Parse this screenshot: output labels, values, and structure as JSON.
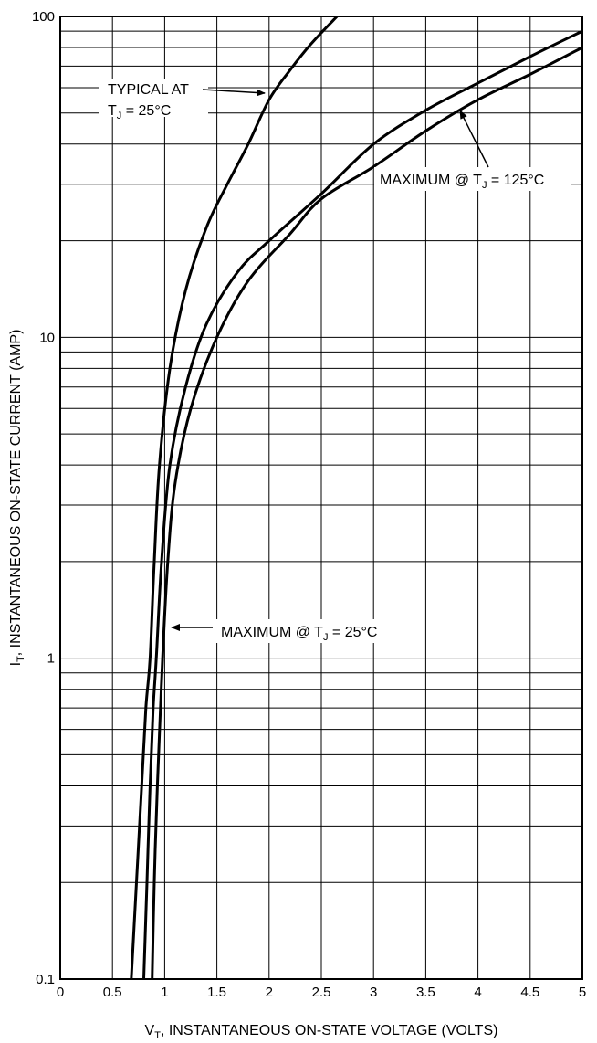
{
  "chart_data": {
    "type": "line",
    "x_scale": "linear",
    "y_scale": "log",
    "xlim": [
      0,
      5
    ],
    "ylim": [
      0.1,
      100
    ],
    "grid": true,
    "x_ticks": [
      "0",
      "0.5",
      "1",
      "1.5",
      "2",
      "2.5",
      "3",
      "3.5",
      "4",
      "4.5",
      "5"
    ],
    "y_ticks": [
      "0.1",
      "1",
      "10",
      "100"
    ],
    "xlabel": {
      "main": "V",
      "sub": "T",
      "rest": ", INSTANTANEOUS ON-STATE VOLTAGE (VOLTS)"
    },
    "ylabel": {
      "main": "I",
      "sub": "T",
      "rest": ", INSTANTANEOUS ON-STATE CURRENT (AMP)"
    },
    "series": [
      {
        "id": "typical-25c",
        "points": [
          [
            0.68,
            0.1
          ],
          [
            0.73,
            0.2
          ],
          [
            0.78,
            0.4
          ],
          [
            0.82,
            0.7
          ],
          [
            0.86,
            1
          ],
          [
            0.9,
            2
          ],
          [
            0.95,
            4
          ],
          [
            1.05,
            8
          ],
          [
            1.2,
            14
          ],
          [
            1.4,
            22
          ],
          [
            1.6,
            30
          ],
          [
            1.8,
            40
          ],
          [
            2.0,
            55
          ],
          [
            2.2,
            68
          ],
          [
            2.4,
            82
          ],
          [
            2.65,
            100
          ]
        ]
      },
      {
        "id": "max-125c",
        "points": [
          [
            0.8,
            0.1
          ],
          [
            0.83,
            0.2
          ],
          [
            0.86,
            0.4
          ],
          [
            0.89,
            0.7
          ],
          [
            0.92,
            1
          ],
          [
            0.97,
            2
          ],
          [
            1.05,
            4
          ],
          [
            1.2,
            7
          ],
          [
            1.4,
            11
          ],
          [
            1.7,
            16
          ],
          [
            2.0,
            20
          ],
          [
            2.5,
            28
          ],
          [
            3.0,
            40
          ],
          [
            3.5,
            51
          ],
          [
            4.0,
            62
          ],
          [
            4.5,
            75
          ],
          [
            5.0,
            90
          ]
        ]
      },
      {
        "id": "max-25c",
        "points": [
          [
            0.88,
            0.1
          ],
          [
            0.9,
            0.2
          ],
          [
            0.93,
            0.4
          ],
          [
            0.96,
            0.7
          ],
          [
            0.98,
            1
          ],
          [
            1.03,
            2
          ],
          [
            1.1,
            3.5
          ],
          [
            1.25,
            6
          ],
          [
            1.5,
            10
          ],
          [
            1.8,
            15
          ],
          [
            2.2,
            21
          ],
          [
            2.5,
            27
          ],
          [
            3.0,
            34
          ],
          [
            3.5,
            44
          ],
          [
            4.0,
            55
          ],
          [
            4.5,
            66
          ],
          [
            5.0,
            80
          ]
        ]
      }
    ],
    "annotations": [
      {
        "id": "typical",
        "line1": "TYPICAL AT",
        "line2_main": "T",
        "line2_sub": "J",
        "line2_rest": " = 25°C"
      },
      {
        "id": "max125",
        "main": "MAXIMUM @ T",
        "sub": "J",
        "rest": " = 125°C"
      },
      {
        "id": "max25",
        "main": "MAXIMUM @ T",
        "sub": "J",
        "rest": " = 25°C"
      }
    ]
  }
}
